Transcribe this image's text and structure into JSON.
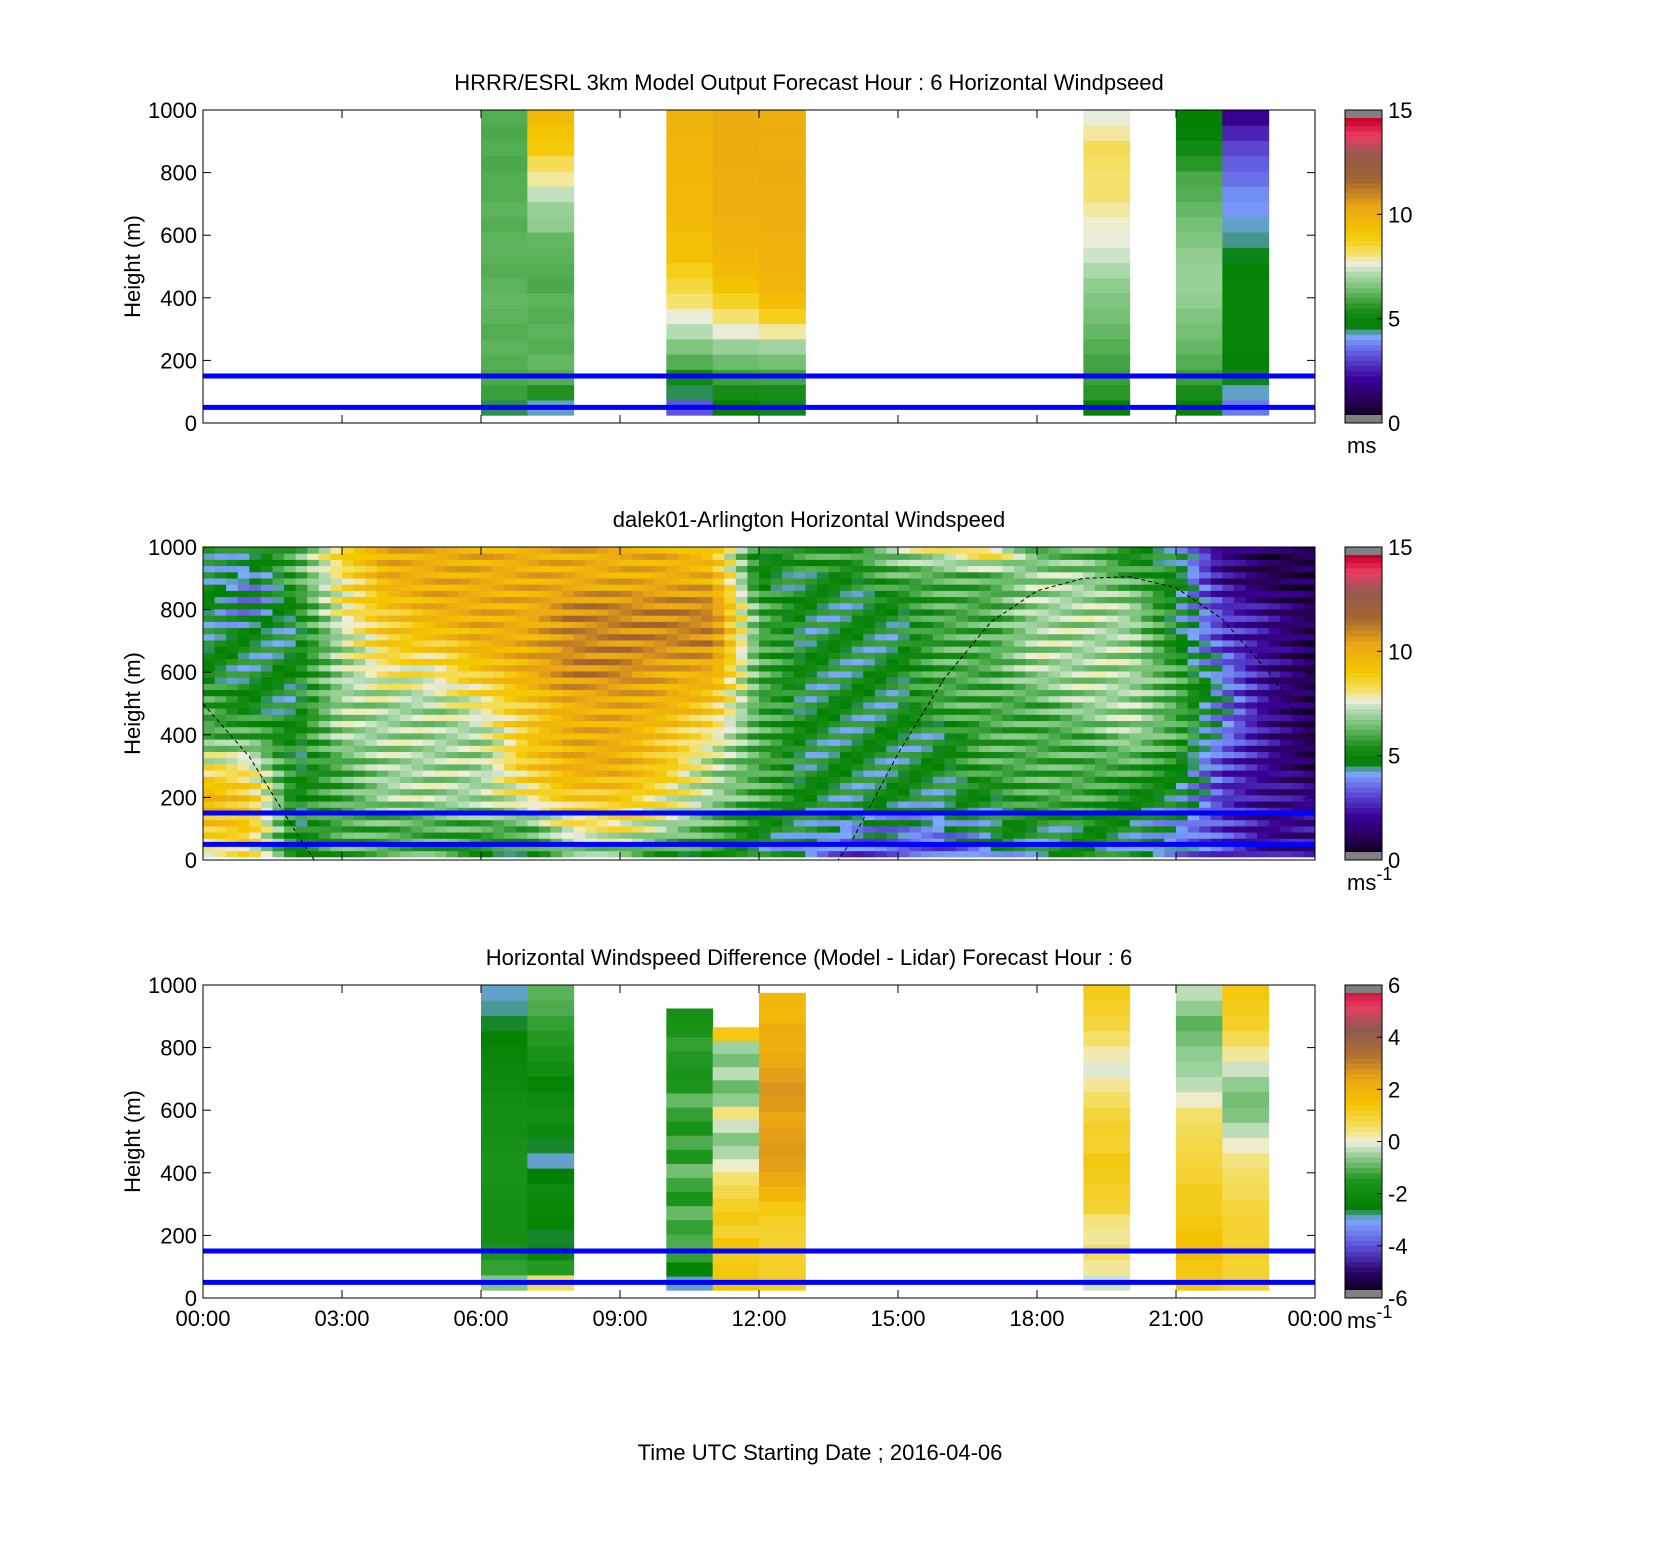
{
  "figure": {
    "xlabel": "Time UTC  Starting Date ; 2016-04-06",
    "xticks": [
      "00:00",
      "03:00",
      "06:00",
      "09:00",
      "12:00",
      "15:00",
      "18:00",
      "21:00",
      "00:00"
    ]
  },
  "colors": {
    "reference_lines": "#0000ff",
    "dashed_curve": "#000000"
  },
  "chart_data": [
    {
      "type": "heatmap",
      "title": "HRRR/ESRL 3km Model Output   Forecast Hour : 6 Horizontal Windpseed",
      "ylabel": "Height (m)",
      "ylim": [
        0,
        1000
      ],
      "yticks": [
        "0",
        "200",
        "400",
        "600",
        "800",
        "1000"
      ],
      "xlim_hours": [
        0,
        24
      ],
      "colorbar": {
        "ticks": [
          "0",
          "5",
          "10",
          "15"
        ],
        "range": [
          0,
          15
        ],
        "unit": "ms"
      },
      "reference_lines_m": [
        50,
        150
      ],
      "columns": [
        {
          "start_h": 6.0,
          "end_h": 7.0,
          "values_bottom_to_top": [
            4.5,
            5.8,
            6.0,
            6.1,
            6.2,
            6.1,
            6.2,
            6.3,
            6.2,
            6.1,
            6.2,
            6.2,
            6.1,
            6.2,
            6.1,
            6.1,
            6.0,
            6.1,
            6.0,
            6.1
          ]
        },
        {
          "start_h": 7.0,
          "end_h": 8.0,
          "values_bottom_to_top": [
            4.3,
            5.5,
            6.1,
            6.3,
            6.1,
            6.2,
            6.1,
            6.2,
            6.0,
            6.1,
            6.2,
            6.3,
            6.8,
            6.9,
            7.3,
            7.9,
            8.3,
            8.9,
            9.1,
            9.5
          ]
        },
        {
          "start_h": 10.0,
          "end_h": 11.0,
          "values_bottom_to_top": [
            3.3,
            4.5,
            5.2,
            6.1,
            6.6,
            7.2,
            7.6,
            8.1,
            8.5,
            8.8,
            9.3,
            9.3,
            9.5,
            9.6,
            9.6,
            9.7,
            9.7,
            9.7,
            9.8,
            9.8
          ]
        },
        {
          "start_h": 11.0,
          "end_h": 12.0,
          "values_bottom_to_top": [
            4.7,
            5.3,
            5.8,
            6.4,
            6.9,
            7.6,
            8.1,
            8.7,
            9.2,
            9.5,
            9.7,
            9.8,
            9.9,
            10.0,
            10.0,
            10.0,
            10.1,
            10.1,
            10.1,
            10.1
          ]
        },
        {
          "start_h": 12.0,
          "end_h": 13.0,
          "values_bottom_to_top": [
            4.6,
            5.4,
            5.9,
            6.5,
            7.0,
            7.9,
            8.8,
            9.4,
            9.7,
            9.8,
            9.9,
            9.9,
            10.0,
            10.0,
            10.0,
            10.1,
            10.1,
            10.0,
            10.1,
            10.0
          ]
        },
        {
          "start_h": 19.0,
          "end_h": 20.0,
          "values_bottom_to_top": [
            4.8,
            5.6,
            5.8,
            5.9,
            6.1,
            6.3,
            6.5,
            6.6,
            6.8,
            7.1,
            7.4,
            7.6,
            7.7,
            7.9,
            8.1,
            8.1,
            8.2,
            8.3,
            7.9,
            7.6
          ]
        },
        {
          "start_h": 21.0,
          "end_h": 22.0,
          "values_bottom_to_top": [
            4.8,
            5.4,
            5.8,
            6.1,
            6.3,
            6.5,
            6.6,
            6.8,
            6.9,
            6.9,
            6.8,
            6.6,
            6.5,
            6.3,
            6.1,
            6.0,
            5.6,
            5.2,
            4.8,
            4.7
          ]
        },
        {
          "start_h": 22.0,
          "end_h": 23.0,
          "values_bottom_to_top": [
            3.7,
            4.3,
            4.6,
            4.8,
            4.9,
            4.9,
            4.9,
            4.9,
            4.9,
            4.8,
            4.6,
            4.4,
            4.3,
            4.0,
            3.9,
            3.6,
            3.4,
            3.1,
            2.6,
            2.0
          ]
        }
      ]
    },
    {
      "type": "heatmap",
      "title": "dalek01-Arlington  Horizontal Windspeed",
      "ylabel": "Height (m)",
      "ylim": [
        0,
        1000
      ],
      "yticks": [
        "0",
        "200",
        "400",
        "600",
        "800",
        "1000"
      ],
      "xlim_hours": [
        0,
        24
      ],
      "colorbar": {
        "ticks": [
          "0",
          "5",
          "10",
          "15"
        ],
        "range": [
          0,
          15
        ],
        "unit": "ms-1"
      },
      "reference_lines_m": [
        50,
        150
      ],
      "dashed_curve": {
        "x_hours": [
          0,
          1,
          2,
          2.4,
          3,
          4,
          5,
          6,
          7,
          8,
          9,
          10,
          11,
          12,
          13,
          13.7,
          14,
          15,
          16,
          17,
          18,
          19,
          20,
          21,
          22,
          23,
          24
        ],
        "height_m": [
          500,
          330,
          90,
          0,
          0,
          0,
          0,
          0,
          0,
          0,
          0,
          0,
          0,
          0,
          0,
          0,
          60,
          340,
          580,
          760,
          860,
          900,
          905,
          870,
          770,
          600,
          380
        ]
      },
      "height_profile_m": [
        0,
        100,
        200,
        300,
        400,
        500,
        600,
        700,
        800,
        900,
        1000
      ],
      "time_profile_h": [
        0,
        1,
        2,
        3,
        4,
        5,
        6,
        7,
        8,
        9,
        10,
        11,
        12,
        13,
        14,
        15,
        16,
        17,
        18,
        19,
        20,
        21,
        22,
        23,
        24
      ],
      "values_by_time": [
        [
          7,
          9,
          10,
          8,
          6,
          6,
          5,
          5,
          5,
          5,
          5
        ],
        [
          8,
          9,
          9,
          8,
          6,
          5,
          5,
          5,
          4,
          4,
          5
        ],
        [
          5,
          5,
          5,
          5,
          5,
          5,
          5,
          5,
          5,
          6,
          6
        ],
        [
          6,
          6,
          6,
          6,
          7,
          7,
          7,
          7,
          8,
          8,
          9
        ],
        [
          6,
          6,
          7,
          7,
          7,
          7,
          8,
          9,
          9,
          10,
          10
        ],
        [
          6,
          6,
          7,
          7,
          7,
          7,
          8,
          9,
          10,
          10,
          10
        ],
        [
          5,
          6,
          7,
          7,
          7,
          8,
          9,
          10,
          10,
          10,
          10
        ],
        [
          5,
          6,
          8,
          9,
          9,
          9,
          10,
          10,
          10,
          10,
          10
        ],
        [
          6,
          8,
          9,
          10,
          10,
          10,
          11,
          11,
          11,
          10,
          10
        ],
        [
          6,
          8,
          9,
          10,
          10,
          10,
          11,
          11,
          11,
          10,
          10
        ],
        [
          5,
          7,
          8,
          9,
          9,
          10,
          10,
          11,
          11,
          10,
          10
        ],
        [
          5,
          6,
          7,
          7,
          8,
          9,
          10,
          11,
          11,
          10,
          9
        ],
        [
          5,
          5,
          6,
          6,
          6,
          6,
          6,
          6,
          6,
          5,
          5
        ],
        [
          4,
          5,
          5,
          5,
          5,
          5,
          5,
          5,
          5,
          5,
          6
        ],
        [
          3,
          4,
          5,
          5,
          5,
          5,
          5,
          5,
          5,
          5,
          6
        ],
        [
          3,
          4,
          5,
          5,
          5,
          5,
          5,
          5,
          5,
          6,
          7
        ],
        [
          3,
          4,
          5,
          5,
          5,
          6,
          6,
          6,
          6,
          6,
          8
        ],
        [
          4,
          5,
          5,
          6,
          6,
          6,
          6,
          6,
          6,
          6,
          9
        ],
        [
          5,
          5,
          6,
          6,
          6,
          6,
          7,
          7,
          7,
          7,
          6
        ],
        [
          5,
          5,
          6,
          6,
          6,
          7,
          7,
          7,
          7,
          7,
          6
        ],
        [
          5,
          5,
          5,
          6,
          7,
          7,
          7,
          7,
          7,
          6,
          5
        ],
        [
          4,
          4,
          5,
          5,
          6,
          6,
          6,
          5,
          5,
          5,
          5
        ],
        [
          3,
          3,
          3,
          3,
          4,
          4,
          4,
          3,
          3,
          2,
          2
        ],
        [
          2,
          2,
          2,
          2,
          2,
          2,
          2,
          2,
          2,
          1,
          1
        ],
        [
          2,
          2,
          2,
          1,
          1,
          1,
          1,
          1,
          1,
          1,
          1
        ]
      ]
    },
    {
      "type": "heatmap",
      "title": "Horizontal Windspeed Difference (Model - Lidar) Forecast Hour : 6",
      "ylabel": "Height (m)",
      "ylim": [
        0,
        1000
      ],
      "yticks": [
        "0",
        "200",
        "400",
        "600",
        "800",
        "1000"
      ],
      "xlim_hours": [
        0,
        24
      ],
      "colorbar": {
        "ticks": [
          "-6",
          "-4",
          "-2",
          "0",
          "2",
          "4",
          "6"
        ],
        "range": [
          -6,
          6
        ],
        "unit": "ms-1"
      },
      "reference_lines_m": [
        50,
        150
      ],
      "columns": [
        {
          "start_h": 6.0,
          "end_h": 7.0,
          "top_m": 1000,
          "values_bottom_to_top": [
            -0.7,
            -1.3,
            -1.6,
            -1.8,
            -1.8,
            -1.8,
            -1.7,
            -1.6,
            -1.6,
            -1.7,
            -1.8,
            -1.8,
            -1.9,
            -2.0,
            -2.1,
            -2.2,
            -2.4,
            -2.6,
            -2.8,
            -2.9
          ]
        },
        {
          "start_h": 7.0,
          "end_h": 8.0,
          "top_m": 1000,
          "values_bottom_to_top": [
            0.6,
            -1.4,
            -2.2,
            -2.6,
            -2.3,
            -2.2,
            -2.0,
            -2.5,
            -2.9,
            -2.6,
            -2.1,
            -1.8,
            -2.0,
            -2.3,
            -1.9,
            -1.6,
            -1.4,
            -1.3,
            -1.1,
            -1.0
          ]
        },
        {
          "start_h": 10.0,
          "end_h": 11.0,
          "top_m": 925,
          "values_bottom_to_top": [
            -2.9,
            -2.4,
            -1.3,
            -1.1,
            -1.3,
            -0.9,
            -1.6,
            -1.2,
            -0.8,
            -1.5,
            -1.1,
            -1.7,
            -1.3,
            -0.9,
            -1.5,
            -1.6,
            -1.4,
            -1.3,
            -1.6,
            -1.7
          ]
        },
        {
          "start_h": 11.0,
          "end_h": 12.0,
          "top_m": 865,
          "values_bottom_to_top": [
            1.4,
            1.3,
            1.2,
            1.4,
            1.0,
            1.3,
            1.1,
            0.8,
            0.5,
            0.1,
            -0.4,
            -0.7,
            -0.2,
            0.4,
            -0.6,
            -0.9,
            -0.3,
            -0.8,
            -0.5,
            1.3
          ]
        },
        {
          "start_h": 12.0,
          "end_h": 13.0,
          "top_m": 975,
          "values_bottom_to_top": [
            1.2,
            1.1,
            1.1,
            1.0,
            1.1,
            1.3,
            1.9,
            2.3,
            2.5,
            2.6,
            2.5,
            2.4,
            2.6,
            2.7,
            2.5,
            2.3,
            2.1,
            2.2,
            1.8,
            1.9
          ]
        },
        {
          "start_h": 19.0,
          "end_h": 20.0,
          "top_m": 1000,
          "values_bottom_to_top": [
            -0.2,
            0.3,
            0.6,
            0.3,
            0.4,
            1.0,
            1.1,
            1.2,
            1.3,
            1.0,
            1.1,
            0.9,
            0.6,
            0.3,
            -0.1,
            0.2,
            0.5,
            0.9,
            1.1,
            1.2
          ]
        },
        {
          "start_h": 21.0,
          "end_h": 22.0,
          "top_m": 1000,
          "values_bottom_to_top": [
            1.3,
            1.3,
            1.6,
            1.5,
            1.3,
            1.2,
            1.2,
            1.0,
            0.9,
            0.8,
            0.7,
            0.5,
            0.1,
            -0.3,
            -0.5,
            -0.6,
            -0.8,
            -1.0,
            -0.6,
            -0.3
          ]
        },
        {
          "start_h": 22.0,
          "end_h": 23.0,
          "top_m": 1000,
          "values_bottom_to_top": [
            1.0,
            1.0,
            1.1,
            1.0,
            1.0,
            0.9,
            0.7,
            0.6,
            0.4,
            0.1,
            -0.3,
            -0.7,
            -0.8,
            -0.6,
            -0.2,
            0.3,
            0.7,
            1.1,
            1.2,
            1.3
          ]
        }
      ]
    }
  ]
}
